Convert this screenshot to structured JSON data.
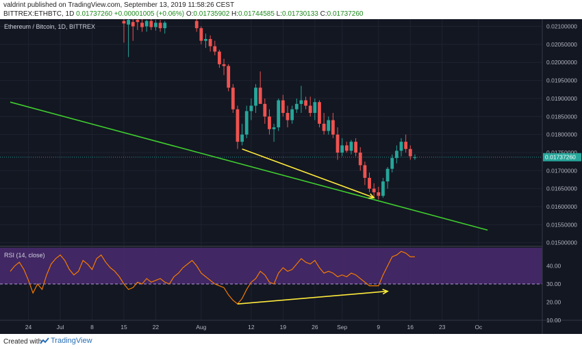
{
  "header": {
    "author": "valdrint",
    "published": "published on TradingView.com, September 13, 2019 11:58:26 CEST",
    "symbol_info": "BITTREX:ETHBTC, 1D",
    "last": "0.01737260",
    "change": "+0.00001005 (+0.06%)",
    "open_label": "O:",
    "open": "0.01735902",
    "high_label": "H:",
    "high": "0.01744585",
    "low_label": "L:",
    "low": "0.01730133",
    "close_label": "C:",
    "close": "0.01737260"
  },
  "footer": {
    "created_with": "Created with",
    "brand": "TradingView"
  },
  "colors": {
    "up": "#26a69a",
    "down": "#ef5350",
    "trendline": "#3fcf2e",
    "arrow": "#ffeb3b",
    "rsi_line": "#f57c00",
    "rsi_band": "#4a2a6e",
    "last_price_bg": "#26a69a"
  },
  "chart_data": [
    {
      "type": "candlestick",
      "title": "Ethereum / Bitcoin, 1D, BITTREX",
      "ylim": [
        0.0149,
        0.0212
      ],
      "y_ticks": [
        "0.02100000",
        "0.02050000",
        "0.02000000",
        "0.01950000",
        "0.01900000",
        "0.01850000",
        "0.01800000",
        "0.01750000",
        "0.01700000",
        "0.01650000",
        "0.01600000",
        "0.01550000",
        "0.01500000"
      ],
      "last_price_label": "0.01737260",
      "x_ticks": [
        {
          "label": "24",
          "day": -7
        },
        {
          "label": "Jul",
          "day": 0
        },
        {
          "label": "8",
          "day": 7
        },
        {
          "label": "15",
          "day": 14
        },
        {
          "label": "22",
          "day": 21
        },
        {
          "label": "Aug",
          "day": 31
        },
        {
          "label": "12",
          "day": 42
        },
        {
          "label": "19",
          "day": 49
        },
        {
          "label": "26",
          "day": 56
        },
        {
          "label": "Sep",
          "day": 62
        },
        {
          "label": "9",
          "day": 70
        },
        {
          "label": "16",
          "day": 77
        },
        {
          "label": "23",
          "day": 84
        },
        {
          "label": "Oc",
          "day": 92
        }
      ],
      "candles": [
        {
          "day": 14,
          "o": 0.02115,
          "h": 0.02125,
          "l": 0.02055,
          "c": 0.02108
        },
        {
          "day": 15,
          "o": 0.02105,
          "h": 0.0212,
          "l": 0.02015,
          "c": 0.02118
        },
        {
          "day": 16,
          "o": 0.02112,
          "h": 0.02125,
          "l": 0.0206,
          "c": 0.021
        },
        {
          "day": 17,
          "o": 0.02118,
          "h": 0.02125,
          "l": 0.0209,
          "c": 0.02112
        },
        {
          "day": 18,
          "o": 0.0211,
          "h": 0.0212,
          "l": 0.02085,
          "c": 0.02098
        },
        {
          "day": 19,
          "o": 0.021,
          "h": 0.02118,
          "l": 0.02085,
          "c": 0.02115
        },
        {
          "day": 20,
          "o": 0.02115,
          "h": 0.02125,
          "l": 0.0209,
          "c": 0.02098
        },
        {
          "day": 21,
          "o": 0.02098,
          "h": 0.02118,
          "l": 0.02088,
          "c": 0.0211
        },
        {
          "day": 22,
          "o": 0.0211,
          "h": 0.02118,
          "l": 0.02085,
          "c": 0.02095
        },
        {
          "day": 23,
          "o": 0.02095,
          "h": 0.02115,
          "l": 0.0208,
          "c": 0.0211
        },
        {
          "day": 30,
          "o": 0.02115,
          "h": 0.02125,
          "l": 0.02085,
          "c": 0.02095
        },
        {
          "day": 31,
          "o": 0.02095,
          "h": 0.021,
          "l": 0.0205,
          "c": 0.0206
        },
        {
          "day": 32,
          "o": 0.0206,
          "h": 0.0208,
          "l": 0.0204,
          "c": 0.02065
        },
        {
          "day": 33,
          "o": 0.02065,
          "h": 0.02075,
          "l": 0.0203,
          "c": 0.02045
        },
        {
          "day": 34,
          "o": 0.02045,
          "h": 0.0206,
          "l": 0.0202,
          "c": 0.0203
        },
        {
          "day": 35,
          "o": 0.0203,
          "h": 0.02035,
          "l": 0.01985,
          "c": 0.01995
        },
        {
          "day": 36,
          "o": 0.01995,
          "h": 0.0201,
          "l": 0.01965,
          "c": 0.0199
        },
        {
          "day": 37,
          "o": 0.0199,
          "h": 0.01995,
          "l": 0.0192,
          "c": 0.0193
        },
        {
          "day": 38,
          "o": 0.0193,
          "h": 0.0194,
          "l": 0.0186,
          "c": 0.0187
        },
        {
          "day": 39,
          "o": 0.0187,
          "h": 0.0188,
          "l": 0.0176,
          "c": 0.0178
        },
        {
          "day": 40,
          "o": 0.0178,
          "h": 0.0183,
          "l": 0.0177,
          "c": 0.018
        },
        {
          "day": 41,
          "o": 0.018,
          "h": 0.0188,
          "l": 0.0179,
          "c": 0.01865
        },
        {
          "day": 42,
          "o": 0.01865,
          "h": 0.019,
          "l": 0.0184,
          "c": 0.0188
        },
        {
          "day": 43,
          "o": 0.0188,
          "h": 0.0194,
          "l": 0.0186,
          "c": 0.0193
        },
        {
          "day": 44,
          "o": 0.0193,
          "h": 0.01975,
          "l": 0.0189,
          "c": 0.01885
        },
        {
          "day": 45,
          "o": 0.01885,
          "h": 0.019,
          "l": 0.0183,
          "c": 0.0185
        },
        {
          "day": 46,
          "o": 0.0185,
          "h": 0.0187,
          "l": 0.018,
          "c": 0.01815
        },
        {
          "day": 47,
          "o": 0.01815,
          "h": 0.0183,
          "l": 0.0178,
          "c": 0.0182
        },
        {
          "day": 48,
          "o": 0.0182,
          "h": 0.019,
          "l": 0.0181,
          "c": 0.01895
        },
        {
          "day": 49,
          "o": 0.01895,
          "h": 0.0191,
          "l": 0.0185,
          "c": 0.0186
        },
        {
          "day": 50,
          "o": 0.0186,
          "h": 0.0188,
          "l": 0.0182,
          "c": 0.0184
        },
        {
          "day": 51,
          "o": 0.0184,
          "h": 0.0188,
          "l": 0.0183,
          "c": 0.0187
        },
        {
          "day": 52,
          "o": 0.0187,
          "h": 0.019,
          "l": 0.0186,
          "c": 0.01885
        },
        {
          "day": 53,
          "o": 0.01885,
          "h": 0.01935,
          "l": 0.0186,
          "c": 0.01895
        },
        {
          "day": 54,
          "o": 0.01895,
          "h": 0.01905,
          "l": 0.0187,
          "c": 0.0188
        },
        {
          "day": 55,
          "o": 0.0188,
          "h": 0.01905,
          "l": 0.0185,
          "c": 0.0186
        },
        {
          "day": 56,
          "o": 0.0186,
          "h": 0.019,
          "l": 0.0184,
          "c": 0.0189
        },
        {
          "day": 57,
          "o": 0.0189,
          "h": 0.01895,
          "l": 0.0182,
          "c": 0.0183
        },
        {
          "day": 58,
          "o": 0.0183,
          "h": 0.0186,
          "l": 0.018,
          "c": 0.0181
        },
        {
          "day": 59,
          "o": 0.0181,
          "h": 0.0185,
          "l": 0.018,
          "c": 0.0184
        },
        {
          "day": 60,
          "o": 0.0184,
          "h": 0.0186,
          "l": 0.0179,
          "c": 0.018
        },
        {
          "day": 61,
          "o": 0.018,
          "h": 0.0182,
          "l": 0.0173,
          "c": 0.0175
        },
        {
          "day": 62,
          "o": 0.0175,
          "h": 0.0179,
          "l": 0.0174,
          "c": 0.0177
        },
        {
          "day": 63,
          "o": 0.0177,
          "h": 0.0178,
          "l": 0.0175,
          "c": 0.01755
        },
        {
          "day": 64,
          "o": 0.01755,
          "h": 0.01785,
          "l": 0.01745,
          "c": 0.0178
        },
        {
          "day": 65,
          "o": 0.0178,
          "h": 0.0179,
          "l": 0.0174,
          "c": 0.0175
        },
        {
          "day": 66,
          "o": 0.0175,
          "h": 0.01765,
          "l": 0.017,
          "c": 0.01715
        },
        {
          "day": 67,
          "o": 0.01715,
          "h": 0.01725,
          "l": 0.0166,
          "c": 0.0168
        },
        {
          "day": 68,
          "o": 0.0168,
          "h": 0.01695,
          "l": 0.0164,
          "c": 0.0165
        },
        {
          "day": 69,
          "o": 0.0165,
          "h": 0.01665,
          "l": 0.01625,
          "c": 0.0164
        },
        {
          "day": 70,
          "o": 0.0164,
          "h": 0.01655,
          "l": 0.0162,
          "c": 0.0163
        },
        {
          "day": 71,
          "o": 0.0163,
          "h": 0.0168,
          "l": 0.01625,
          "c": 0.0167
        },
        {
          "day": 72,
          "o": 0.0167,
          "h": 0.0171,
          "l": 0.0165,
          "c": 0.01705
        },
        {
          "day": 73,
          "o": 0.01705,
          "h": 0.01745,
          "l": 0.01695,
          "c": 0.01735
        },
        {
          "day": 74,
          "o": 0.01735,
          "h": 0.0177,
          "l": 0.0172,
          "c": 0.01755
        },
        {
          "day": 75,
          "o": 0.01755,
          "h": 0.0179,
          "l": 0.0174,
          "c": 0.0178
        },
        {
          "day": 76,
          "o": 0.0178,
          "h": 0.018,
          "l": 0.0175,
          "c": 0.0176
        },
        {
          "day": 77,
          "o": 0.0176,
          "h": 0.0177,
          "l": 0.0173,
          "c": 0.0174
        },
        {
          "day": 78,
          "o": 0.01736,
          "h": 0.01745,
          "l": 0.0173,
          "c": 0.01737
        }
      ],
      "trendline": {
        "from": {
          "day": -11,
          "price": 0.0189
        },
        "to": {
          "day": 94,
          "price": 0.01535
        }
      },
      "arrow": {
        "from": {
          "day": 40,
          "price": 0.0176
        },
        "to": {
          "day": 69,
          "price": 0.01625
        }
      }
    },
    {
      "type": "line",
      "title": "RSI (14, close)",
      "ylim": [
        10,
        50
      ],
      "y_ticks": [
        "40.00",
        "30.00",
        "20.00",
        "10.00"
      ],
      "band": [
        30,
        70
      ],
      "series": [
        {
          "values": [
            {
              "day": -11,
              "v": 37
            },
            {
              "day": -10,
              "v": 40
            },
            {
              "day": -9,
              "v": 42
            },
            {
              "day": -8,
              "v": 38
            },
            {
              "day": -7,
              "v": 32
            },
            {
              "day": -6,
              "v": 25
            },
            {
              "day": -5,
              "v": 30
            },
            {
              "day": -4,
              "v": 27
            },
            {
              "day": -3,
              "v": 35
            },
            {
              "day": -2,
              "v": 41
            },
            {
              "day": -1,
              "v": 44
            },
            {
              "day": 0,
              "v": 46
            },
            {
              "day": 1,
              "v": 43
            },
            {
              "day": 2,
              "v": 38
            },
            {
              "day": 3,
              "v": 35
            },
            {
              "day": 4,
              "v": 37
            },
            {
              "day": 5,
              "v": 43
            },
            {
              "day": 6,
              "v": 41
            },
            {
              "day": 7,
              "v": 38
            },
            {
              "day": 8,
              "v": 44
            },
            {
              "day": 9,
              "v": 46
            },
            {
              "day": 10,
              "v": 42
            },
            {
              "day": 11,
              "v": 39
            },
            {
              "day": 12,
              "v": 37
            },
            {
              "day": 13,
              "v": 34
            },
            {
              "day": 14,
              "v": 30
            },
            {
              "day": 15,
              "v": 27
            },
            {
              "day": 16,
              "v": 28
            },
            {
              "day": 17,
              "v": 31
            },
            {
              "day": 18,
              "v": 30
            },
            {
              "day": 19,
              "v": 33
            },
            {
              "day": 20,
              "v": 31
            },
            {
              "day": 21,
              "v": 32
            },
            {
              "day": 22,
              "v": 33
            },
            {
              "day": 23,
              "v": 31
            },
            {
              "day": 24,
              "v": 30
            },
            {
              "day": 25,
              "v": 34
            },
            {
              "day": 26,
              "v": 36
            },
            {
              "day": 27,
              "v": 39
            },
            {
              "day": 28,
              "v": 41
            },
            {
              "day": 29,
              "v": 43
            },
            {
              "day": 30,
              "v": 40
            },
            {
              "day": 31,
              "v": 36
            },
            {
              "day": 32,
              "v": 34
            },
            {
              "day": 33,
              "v": 32
            },
            {
              "day": 34,
              "v": 30
            },
            {
              "day": 35,
              "v": 29
            },
            {
              "day": 36,
              "v": 28
            },
            {
              "day": 37,
              "v": 24
            },
            {
              "day": 38,
              "v": 21
            },
            {
              "day": 39,
              "v": 19
            },
            {
              "day": 40,
              "v": 22
            },
            {
              "day": 41,
              "v": 27
            },
            {
              "day": 42,
              "v": 31
            },
            {
              "day": 43,
              "v": 33
            },
            {
              "day": 44,
              "v": 37
            },
            {
              "day": 45,
              "v": 35
            },
            {
              "day": 46,
              "v": 31
            },
            {
              "day": 47,
              "v": 30
            },
            {
              "day": 48,
              "v": 36
            },
            {
              "day": 49,
              "v": 39
            },
            {
              "day": 50,
              "v": 37
            },
            {
              "day": 51,
              "v": 38
            },
            {
              "day": 52,
              "v": 41
            },
            {
              "day": 53,
              "v": 44
            },
            {
              "day": 54,
              "v": 42
            },
            {
              "day": 55,
              "v": 41
            },
            {
              "day": 56,
              "v": 43
            },
            {
              "day": 57,
              "v": 39
            },
            {
              "day": 58,
              "v": 36
            },
            {
              "day": 59,
              "v": 37
            },
            {
              "day": 60,
              "v": 36
            },
            {
              "day": 61,
              "v": 34
            },
            {
              "day": 62,
              "v": 35
            },
            {
              "day": 63,
              "v": 34
            },
            {
              "day": 64,
              "v": 36
            },
            {
              "day": 65,
              "v": 35
            },
            {
              "day": 66,
              "v": 33
            },
            {
              "day": 67,
              "v": 31
            },
            {
              "day": 68,
              "v": 29
            },
            {
              "day": 69,
              "v": 29
            },
            {
              "day": 70,
              "v": 29
            },
            {
              "day": 71,
              "v": 35
            },
            {
              "day": 72,
              "v": 40
            },
            {
              "day": 73,
              "v": 45
            },
            {
              "day": 74,
              "v": 46
            },
            {
              "day": 75,
              "v": 48
            },
            {
              "day": 76,
              "v": 47
            },
            {
              "day": 77,
              "v": 45
            },
            {
              "day": 78,
              "v": 45
            }
          ]
        }
      ],
      "arrow": {
        "from": {
          "day": 39,
          "v": 19
        },
        "to": {
          "day": 72,
          "v": 26
        }
      }
    }
  ]
}
